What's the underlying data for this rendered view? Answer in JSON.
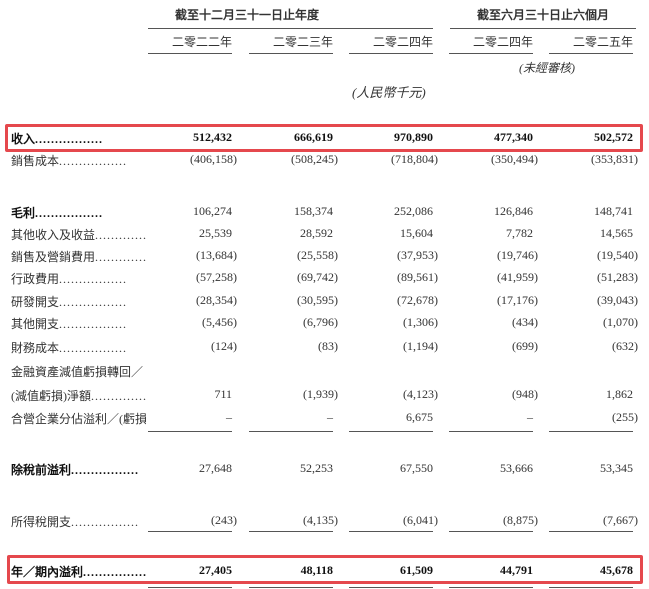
{
  "header": {
    "group_fy": "截至十二月三十一日止年度",
    "group_6m": "截至六月三十日止六個月",
    "years": [
      "二零二二年",
      "二零二三年",
      "二零二四年",
      "二零二四年",
      "二零二五年"
    ],
    "unaudited": "(未經審核)",
    "currency": "(人民幣千元)"
  },
  "highlight_color": "#e5484d",
  "rows": [
    {
      "label": "收入",
      "bold": true,
      "highlight": true,
      "values": [
        "512,432",
        "666,619",
        "970,890",
        "477,340",
        "502,572"
      ]
    },
    {
      "label": "銷售成本",
      "values": [
        "(406,158)",
        "(508,245)",
        "(718,804)",
        "(350,494)",
        "(353,831)"
      ]
    },
    {
      "label": "毛利",
      "bold": true,
      "values": [
        "106,274",
        "158,374",
        "252,086",
        "126,846",
        "148,741"
      ]
    },
    {
      "label": "其他收入及收益",
      "values": [
        "25,539",
        "28,592",
        "15,604",
        "7,782",
        "14,565"
      ]
    },
    {
      "label": "銷售及營銷費用",
      "values": [
        "(13,684)",
        "(25,558)",
        "(37,953)",
        "(19,746)",
        "(19,540)"
      ]
    },
    {
      "label": "行政費用",
      "values": [
        "(57,258)",
        "(69,742)",
        "(89,561)",
        "(41,959)",
        "(51,283)"
      ]
    },
    {
      "label": "研發開支",
      "values": [
        "(28,354)",
        "(30,595)",
        "(72,678)",
        "(17,176)",
        "(39,043)"
      ]
    },
    {
      "label": "其他開支",
      "values": [
        "(5,456)",
        "(6,796)",
        "(1,306)",
        "(434)",
        "(1,070)"
      ]
    },
    {
      "label": "財務成本",
      "values": [
        "(124)",
        "(83)",
        "(1,194)",
        "(699)",
        "(632)"
      ]
    },
    {
      "label": "金融資產減值虧損轉回／",
      "values": []
    },
    {
      "label": "(減值虧損)淨額",
      "values": [
        "711",
        "(1,939)",
        "(4,123)",
        "(948)",
        "1,862"
      ]
    },
    {
      "label": "合營企業分佔溢利／(虧損)",
      "values": [
        "–",
        "–",
        "6,675",
        "–",
        "(255)"
      ]
    },
    {
      "label": "除稅前溢利",
      "bold": true,
      "values": [
        "27,648",
        "52,253",
        "67,550",
        "53,666",
        "53,345"
      ]
    },
    {
      "label": "所得稅開支",
      "values": [
        "(243)",
        "(4,135)",
        "(6,041)",
        "(8,875)",
        "(7,667)"
      ]
    },
    {
      "label": "年／期內溢利",
      "bold": true,
      "highlight": true,
      "values": [
        "27,405",
        "48,118",
        "61,509",
        "44,791",
        "45,678"
      ]
    }
  ]
}
